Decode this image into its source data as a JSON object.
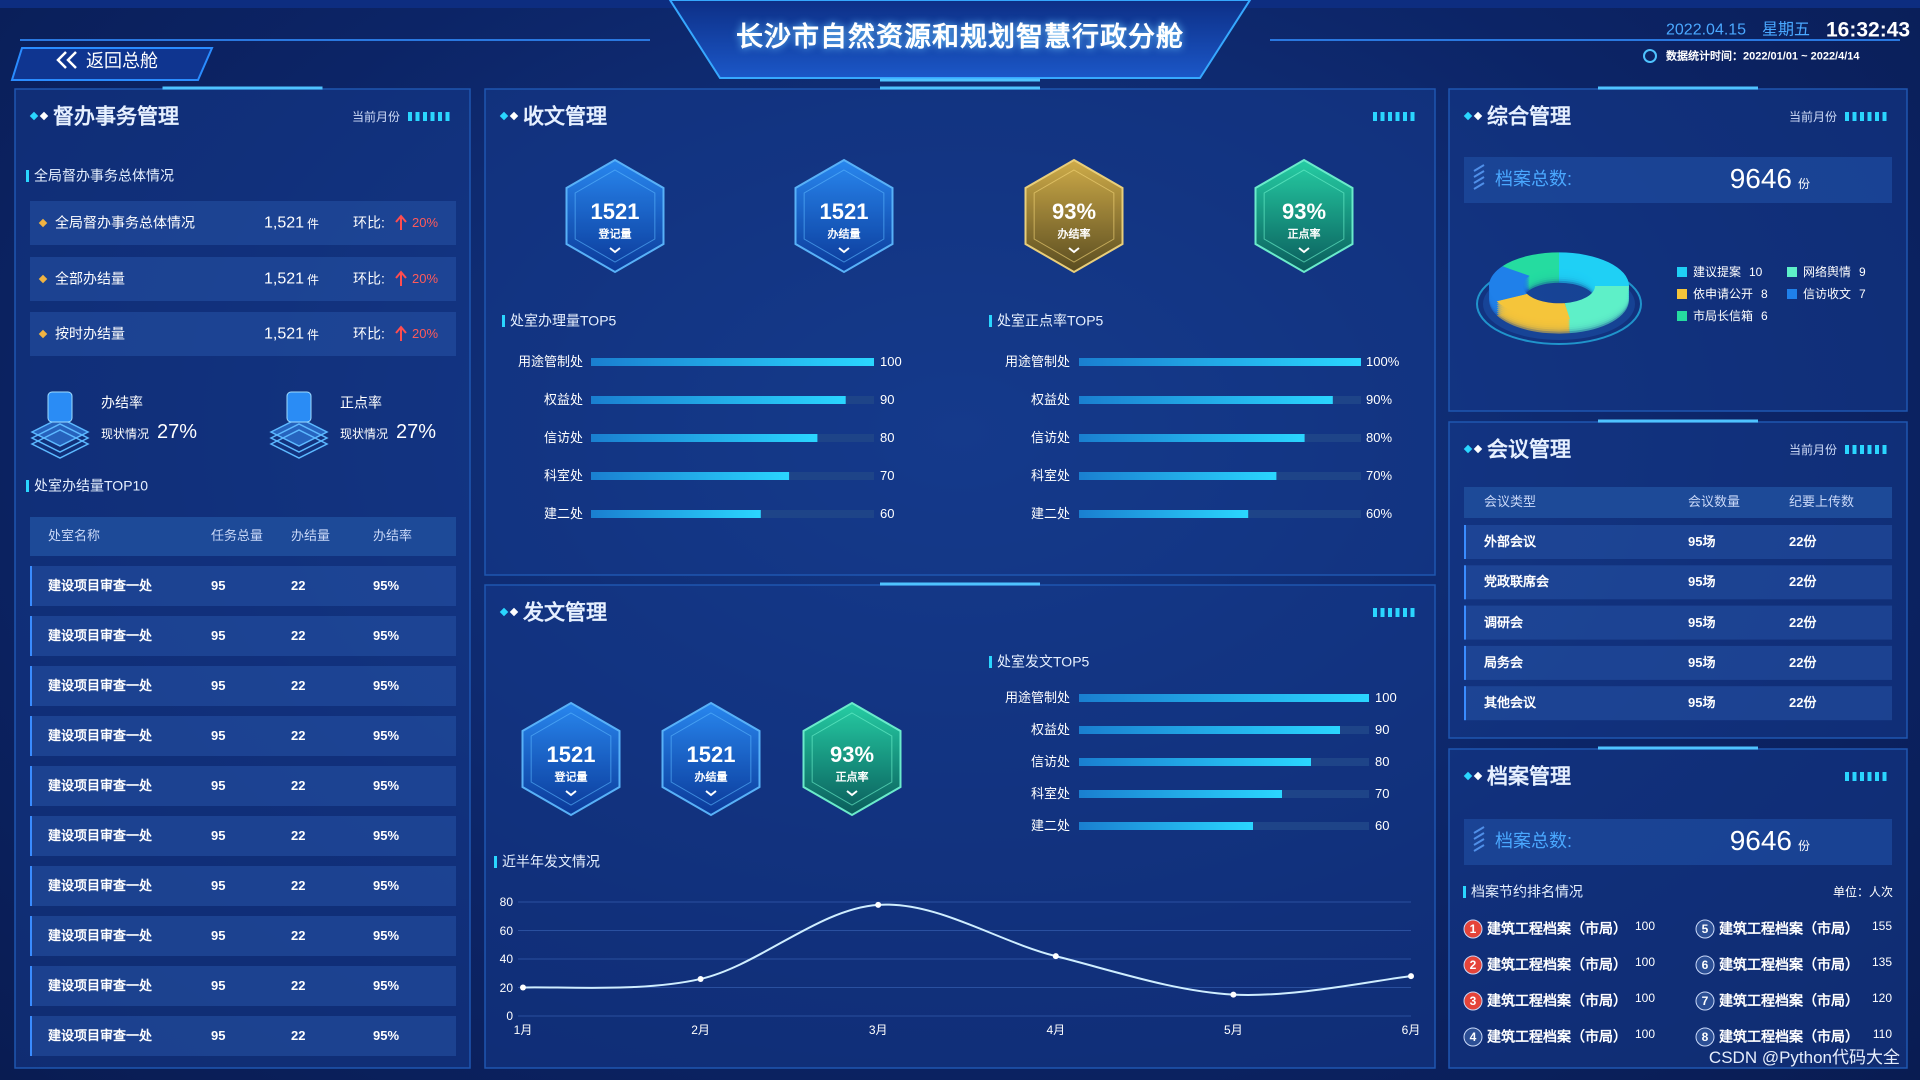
{
  "header": {
    "back": "返回总舱",
    "title": "长沙市自然资源和规划智慧行政分舱",
    "date": "2022.04.15",
    "weekday": "星期五",
    "time": "16:32:43",
    "stat": "数据统计时间：2022/01/01 ~ 2022/4/14"
  },
  "supervision": {
    "title": "督办事务管理",
    "period": "当前月份",
    "overview_title": "全局督办事务总体情况",
    "items": [
      {
        "label": "全局督办事务总体情况",
        "value": "1,521",
        "unit": "件",
        "ratio_label": "环比:",
        "ratio": "20%"
      },
      {
        "label": "全部办结量",
        "value": "1,521",
        "unit": "件",
        "ratio_label": "环比:",
        "ratio": "20%"
      },
      {
        "label": "按时办结量",
        "value": "1,521",
        "unit": "件",
        "ratio_label": "环比:",
        "ratio": "20%"
      }
    ],
    "rates": [
      {
        "label": "办结率",
        "sub": "现状情况",
        "value": "27%"
      },
      {
        "label": "正点率",
        "sub": "现状情况",
        "value": "27%"
      }
    ],
    "table": {
      "title": "处室办结量TOP10",
      "columns": [
        "处室名称",
        "任务总量",
        "办结量",
        "办结率"
      ],
      "rows": [
        [
          "建设项目审查一处",
          "95",
          "22",
          "95%"
        ],
        [
          "建设项目审查一处",
          "95",
          "22",
          "95%"
        ],
        [
          "建设项目审查一处",
          "95",
          "22",
          "95%"
        ],
        [
          "建设项目审查一处",
          "95",
          "22",
          "95%"
        ],
        [
          "建设项目审查一处",
          "95",
          "22",
          "95%"
        ],
        [
          "建设项目审查一处",
          "95",
          "22",
          "95%"
        ],
        [
          "建设项目审查一处",
          "95",
          "22",
          "95%"
        ],
        [
          "建设项目审查一处",
          "95",
          "22",
          "95%"
        ],
        [
          "建设项目审查一处",
          "95",
          "22",
          "95%"
        ],
        [
          "建设项目审查一处",
          "95",
          "22",
          "95%"
        ]
      ]
    }
  },
  "receive": {
    "title": "收文管理",
    "kpis": [
      {
        "value": "1521",
        "label": "登记量",
        "color": "blue"
      },
      {
        "value": "1521",
        "label": "办结量",
        "color": "blue"
      },
      {
        "value": "93%",
        "label": "办结率",
        "color": "gold"
      },
      {
        "value": "93%",
        "label": "正点率",
        "color": "green"
      }
    ],
    "charts": [
      {
        "type": "bar",
        "title": "处室办理量TOP5",
        "categories": [
          "用途管制处",
          "权益处",
          "信访处",
          "科室处",
          "建二处"
        ],
        "values": [
          100,
          90,
          80,
          70,
          60
        ],
        "xlim": [
          0,
          100
        ]
      },
      {
        "type": "bar",
        "title": "处室正点率TOP5",
        "categories": [
          "用途管制处",
          "权益处",
          "信访处",
          "科室处",
          "建二处"
        ],
        "values": [
          100,
          90,
          80,
          70,
          60
        ],
        "value_labels": [
          "100%",
          "90%",
          "80%",
          "70%",
          "60%"
        ],
        "xlim": [
          0,
          100
        ]
      }
    ]
  },
  "dispatch": {
    "title": "发文管理",
    "kpis": [
      {
        "value": "1521",
        "label": "登记量",
        "color": "blue"
      },
      {
        "value": "1521",
        "label": "办结量",
        "color": "blue"
      },
      {
        "value": "93%",
        "label": "正点率",
        "color": "green"
      }
    ],
    "bar": {
      "type": "bar",
      "title": "处室发文TOP5",
      "categories": [
        "用途管制处",
        "权益处",
        "信访处",
        "科室处",
        "建二处"
      ],
      "values": [
        100,
        90,
        80,
        70,
        60
      ],
      "xlim": [
        0,
        100
      ]
    },
    "line": {
      "type": "line",
      "title": "近半年发文情况",
      "categories": [
        "1月",
        "2月",
        "3月",
        "4月",
        "5月",
        "6月"
      ],
      "values": [
        20,
        26,
        78,
        42,
        15,
        28
      ],
      "ylim": [
        0,
        80
      ],
      "yticks": [
        0,
        20,
        40,
        60,
        80
      ],
      "color": "#cfeeff",
      "grid": true
    }
  },
  "general": {
    "title": "综合管理",
    "period": "当前月份",
    "total_label": "档案总数:",
    "total": "9646",
    "unit": "份",
    "pie": {
      "type": "pie",
      "categories": [
        "建议提案",
        "网络舆情",
        "依申请公开",
        "信访收文",
        "市局长信箱"
      ],
      "values": [
        10,
        9,
        8,
        7,
        6
      ],
      "colors": [
        "#1fd0f5",
        "#5ef0c8",
        "#f5c53a",
        "#1f80ea",
        "#25dca0"
      ]
    }
  },
  "meeting": {
    "title": "会议管理",
    "period": "当前月份",
    "columns": [
      "会议类型",
      "会议数量",
      "纪要上传数"
    ],
    "rows": [
      [
        "外部会议",
        "95场",
        "22份"
      ],
      [
        "党政联席会",
        "95场",
        "22份"
      ],
      [
        "调研会",
        "95场",
        "22份"
      ],
      [
        "局务会",
        "95场",
        "22份"
      ],
      [
        "其他会议",
        "95场",
        "22份"
      ]
    ]
  },
  "archive": {
    "title": "档案管理",
    "total_label": "档案总数:",
    "total": "9646",
    "unit": "份",
    "ranking_title": "档案节约排名情况",
    "unit_note": "单位：人次",
    "ranking": [
      {
        "rank": "1",
        "name": "建筑工程档案（市局）",
        "value": "100"
      },
      {
        "rank": "2",
        "name": "建筑工程档案（市局）",
        "value": "100"
      },
      {
        "rank": "3",
        "name": "建筑工程档案（市局）",
        "value": "100"
      },
      {
        "rank": "4",
        "name": "建筑工程档案（市局）",
        "value": "100"
      },
      {
        "rank": "5",
        "name": "建筑工程档案（市局）",
        "value": "155"
      },
      {
        "rank": "6",
        "name": "建筑工程档案（市局）",
        "value": "135"
      },
      {
        "rank": "7",
        "name": "建筑工程档案（市局）",
        "value": "120"
      },
      {
        "rank": "8",
        "name": "建筑工程档案（市局）",
        "value": "110"
      }
    ]
  },
  "watermark": "CSDN @Python代码大全"
}
